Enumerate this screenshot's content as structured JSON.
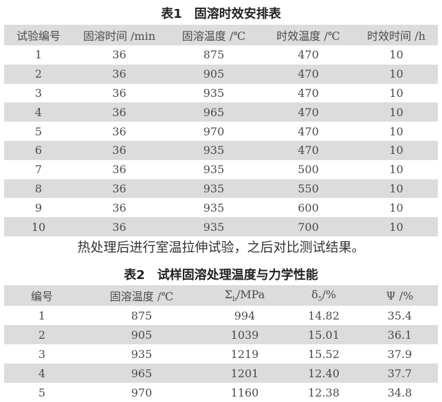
{
  "table1": {
    "title": "表1　固溶时效安排表",
    "headers": [
      "试验编号",
      "固溶时间 /min",
      "固溶温度 /℃",
      "时效温度 /℃",
      "时效时间 /h"
    ],
    "rows": [
      [
        "1",
        "36",
        "875",
        "470",
        "10"
      ],
      [
        "2",
        "36",
        "905",
        "470",
        "10"
      ],
      [
        "3",
        "36",
        "935",
        "470",
        "10"
      ],
      [
        "4",
        "36",
        "965",
        "470",
        "10"
      ],
      [
        "5",
        "36",
        "970",
        "470",
        "10"
      ],
      [
        "6",
        "36",
        "935",
        "470",
        "10"
      ],
      [
        "7",
        "36",
        "935",
        "500",
        "10"
      ],
      [
        "8",
        "36",
        "935",
        "550",
        "10"
      ],
      [
        "9",
        "36",
        "935",
        "600",
        "10"
      ],
      [
        "10",
        "36",
        "935",
        "700",
        "10"
      ]
    ]
  },
  "paragraph": "热处理后进行室温拉伸试验，之后对比测试结果。",
  "table2": {
    "title": "表2　试样固溶处理温度与力学性能",
    "headers": [
      "编号",
      "固溶温度 /℃",
      "Σ",
      "b",
      "/MPa",
      "δ",
      "5",
      "/%",
      "Ψ /%"
    ],
    "rows": [
      [
        "1",
        "875",
        "994",
        "14.82",
        "35.4"
      ],
      [
        "2",
        "905",
        "1039",
        "15.01",
        "36.1"
      ],
      [
        "3",
        "935",
        "1219",
        "15.52",
        "37.9"
      ],
      [
        "4",
        "965",
        "1201",
        "12.40",
        "37.7"
      ],
      [
        "5",
        "970",
        "1160",
        "12.38",
        "34.8"
      ]
    ]
  },
  "colors": {
    "stripe": "#dcdcdc",
    "text": "#4a4a4a"
  }
}
